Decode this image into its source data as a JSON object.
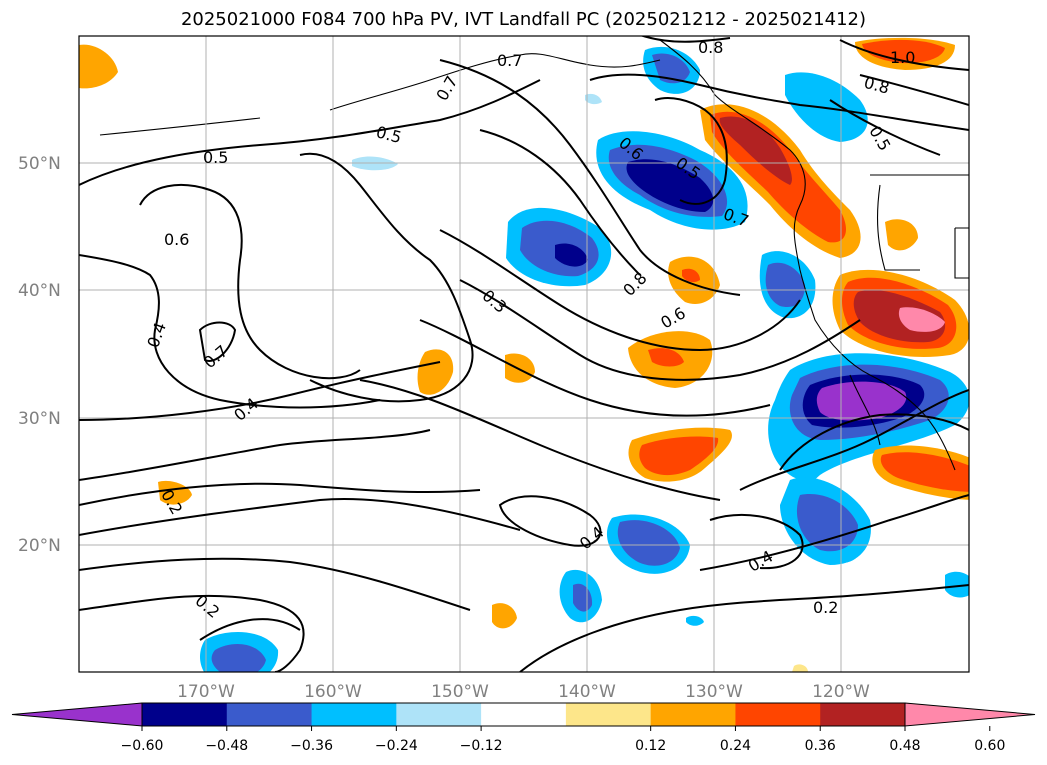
{
  "title": "2025021000 F084 700 hPa PV, IVT Landfall PC (2025021212 - 2025021412)",
  "latitude_labels": [
    "50°N",
    "40°N",
    "30°N",
    "20°N"
  ],
  "longitude_labels": [
    "170°W",
    "160°W",
    "150°W",
    "140°W",
    "130°W",
    "120°W"
  ],
  "colorbar": {
    "tick_labels": [
      "−0.60",
      "−0.48",
      "−0.36",
      "−0.24",
      "−0.12",
      "0.12",
      "0.24",
      "0.36",
      "0.48",
      "0.60"
    ],
    "colors": [
      "#9932cc",
      "#00008b",
      "#3a5bcc",
      "#00bfff",
      "#aee3f8",
      "#ffffff",
      "#fde68a",
      "#ffa500",
      "#ff4500",
      "#b22222",
      "#ff88aa"
    ]
  },
  "contour_labels": {
    "c05a": "0.5",
    "c07a": "0.7",
    "c07b": "0.7",
    "c05b": "0.5",
    "c06a": "0.6",
    "c04a": "0.4",
    "c07c": "0.7",
    "c04b": "0.4",
    "c03": "0.3",
    "c06b": "0.6",
    "c05c": "0.5",
    "c07d": "0.7",
    "c08a": "0.8",
    "c06c": "0.6",
    "c02a": "0.2",
    "c04c": "0.4",
    "c04d": "0.4",
    "c02b": "0.2",
    "c02c": "0.2",
    "c08b": "0.8",
    "c10": "1.0",
    "c08c": "0.8",
    "c05d": "0.5"
  }
}
